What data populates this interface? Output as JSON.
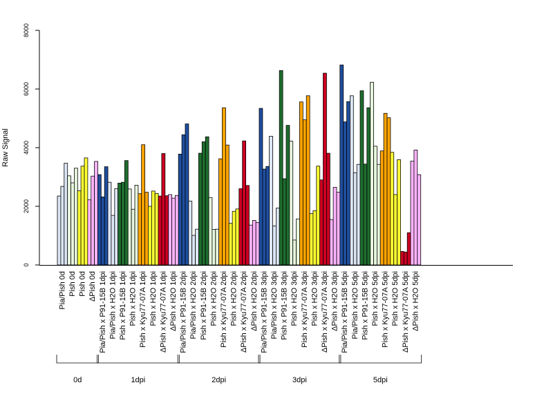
{
  "chart_data": {
    "type": "bar",
    "title": "",
    "xlabel": "",
    "ylabel": "Raw Signal",
    "ylim": [
      0,
      8000
    ],
    "y_ticks": [
      0,
      2000,
      4000,
      6000,
      8000
    ],
    "replicates": 3,
    "categories": [
      "Pia/Pish 0d",
      "Pish 0d",
      "Pish 0d",
      "ΔPish 0d",
      "Pia/Pish x P91-15B 1dpi",
      "Pia/Pish x H2O 1dpi",
      "Pish x P91-15B 1dpi",
      "Pish x H2O 1dpi",
      "Pish x Kyu77-07A 1dpi",
      "Pish x H2O 1dpi",
      "ΔPish x Kyu77-07A 1dpi",
      "ΔPish x H2O 1dpi",
      "Pia/Pish x P91-15B 2dpi",
      "Pia/Pish x H2O 2dpi",
      "Pish x P91-15B 2dpi",
      "Pish x H2O 2dpi",
      "Pish x Kyu77-07A 2dpi",
      "Pish x H2O 2dpi",
      "ΔPish x Kyu77-07A 2dpi",
      "ΔPish x H2O 2dpi",
      "Pia/Pish x P91-15B 3dpi",
      "Pia/Pish x H2O 3dpi",
      "Pish x P91-15B 3dpi",
      "Pish x H2O 3dpi",
      "Pish x Kyu77-07A 3dpi",
      "Pish x H2O 3dpi",
      "ΔPish x Kyu77-07A 3dpi",
      "ΔPish x H2O 3dpi",
      "Pia/Pish x P91-15B 5dpi",
      "Pia/Pish x H2O 5dpi",
      "Pish x P91-15B 5dpi",
      "Pish x H2O 5dpi",
      "Pish x Kyu77-07A 5dpi",
      "Pish x H2O 5dpi",
      "ΔPish x Kyu77-07A 5dpi",
      "ΔPish x H2O 5dpi"
    ],
    "values": [
      [
        2350,
        2680,
        3470
      ],
      [
        3040,
        2800,
        3300
      ],
      [
        2530,
        3370,
        3650
      ],
      [
        2220,
        3030,
        3530
      ],
      [
        3080,
        2320,
        3350
      ],
      [
        2820,
        1690,
        2600
      ],
      [
        2790,
        2820,
        3560
      ],
      [
        2590,
        1900,
        2720
      ],
      [
        2430,
        4100,
        2480
      ],
      [
        2000,
        2520,
        2440
      ],
      [
        2350,
        3800,
        2360
      ],
      [
        2400,
        2280,
        2370
      ],
      [
        3780,
        4440,
        4810
      ],
      [
        2180,
        1010,
        1220
      ],
      [
        3810,
        4200,
        4370
      ],
      [
        2300,
        1210,
        1220
      ],
      [
        3620,
        5360,
        4090
      ],
      [
        1420,
        1830,
        1910
      ],
      [
        2600,
        4230,
        2710
      ],
      [
        1360,
        1520,
        1450
      ],
      [
        5340,
        3270,
        3360
      ],
      [
        4390,
        1330,
        1940
      ],
      [
        6630,
        2940,
        4760
      ],
      [
        4220,
        850,
        1570
      ],
      [
        5560,
        4950,
        5770
      ],
      [
        1750,
        1850,
        3370
      ],
      [
        2900,
        6540,
        3810
      ],
      [
        1550,
        2650,
        2480
      ],
      [
        6820,
        4880,
        5570
      ],
      [
        5770,
        3140,
        3430
      ],
      [
        5940,
        3440,
        5360
      ],
      [
        6230,
        4050,
        3430
      ],
      [
        3890,
        5170,
        5020
      ],
      [
        3840,
        2400,
        3590
      ],
      [
        460,
        440,
        1100
      ],
      [
        3540,
        3920,
        3080
      ]
    ],
    "bar_colors": [
      "#dce6f5",
      "#e6f5dc",
      "#ffff33",
      "#ffb3ff",
      "#1f4fa0",
      "#dce6f5",
      "#1f6e2e",
      "#e6f5dc",
      "#ffa500",
      "#ffff33",
      "#cc0022",
      "#ffb3ff",
      "#1f4fa0",
      "#dce6f5",
      "#1f6e2e",
      "#e6f5dc",
      "#ffa500",
      "#ffff33",
      "#cc0022",
      "#ffb3ff",
      "#1f4fa0",
      "#dce6f5",
      "#1f6e2e",
      "#e6f5dc",
      "#ffa500",
      "#ffff33",
      "#cc0022",
      "#ffb3ff",
      "#1f4fa0",
      "#dce6f5",
      "#1f6e2e",
      "#e6f5dc",
      "#ffa500",
      "#ffff33",
      "#cc0022",
      "#ffb3ff"
    ],
    "groups": [
      {
        "label": "0d",
        "start": 0,
        "end": 3
      },
      {
        "label": "1dpi",
        "start": 4,
        "end": 11
      },
      {
        "label": "2dpi",
        "start": 12,
        "end": 19
      },
      {
        "label": "3dpi",
        "start": 20,
        "end": 27
      },
      {
        "label": "5dpi",
        "start": 28,
        "end": 35
      }
    ],
    "grid": false,
    "legend": "none"
  }
}
